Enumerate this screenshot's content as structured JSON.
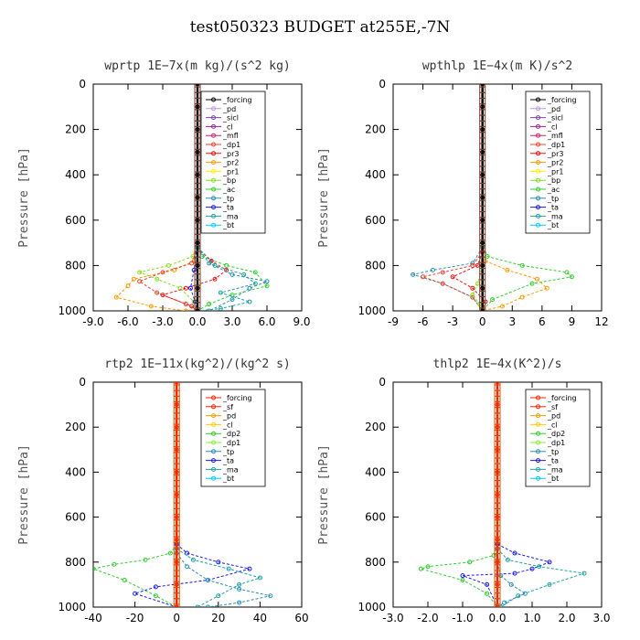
{
  "title": "test050323  BUDGET at255E,-7N",
  "colors": {
    "forcing": "#000000",
    "pd": "#bb99dd",
    "sicl": "#7a3fb8",
    "cl": "#9a2090",
    "mfl": "#cc2266",
    "dp1": "#e8432f",
    "pr3": "#ee1111",
    "pr2": "#ff9900",
    "pr1": "#ffee00",
    "bp": "#88dd22",
    "ac": "#33cc33",
    "tp": "#2a8fb5",
    "ta": "#1a1aee",
    "ma": "#20a0a0",
    "bt": "#00ccff",
    "forcing_red": "#ff2200",
    "sf": "#ff2200",
    "pd2": "#ff9900",
    "cl2": "#ffcc00",
    "dp2": "#33cc33",
    "dp1g": "#88ee33"
  },
  "chart_data": [
    {
      "type": "line",
      "title": "wprtp  1E−7x(m kg)/(s^2 kg)",
      "ylabel": "Pressure [hPa]",
      "xlim": [
        -9,
        9
      ],
      "ylim": [
        1000,
        0
      ],
      "xticks": [
        "-9.0",
        "-6.0",
        "-3.0",
        "0.0",
        "3.0",
        "6.0",
        "9.0"
      ],
      "xtick_values": [
        -9,
        -6,
        -3,
        0,
        3,
        6,
        9
      ],
      "yticks": [
        "0",
        "200",
        "400",
        "600",
        "800",
        "1000"
      ],
      "legend": [
        "_forcing",
        "_pd",
        "_sicl",
        "_cl",
        "_mfl",
        "_dp1",
        "_pr3",
        "_pr2",
        "_pr1",
        "_bp",
        "_ac",
        "_tp",
        "_ta",
        "_ma",
        "_bt"
      ],
      "legend_keys": [
        "forcing",
        "pd",
        "sicl",
        "cl",
        "mfl",
        "dp1",
        "pr3",
        "pr2",
        "pr1",
        "bp",
        "ac",
        "tp",
        "ta",
        "ma",
        "bt"
      ],
      "series": [
        {
          "key": "bp",
          "x": [
            0,
            -0.4,
            -2.5,
            -5.0,
            -3.5,
            -1.5,
            -0.3,
            0
          ],
          "y": [
            700,
            760,
            800,
            830,
            860,
            900,
            960,
            1000
          ]
        },
        {
          "key": "ac",
          "x": [
            0,
            0.4,
            2.5,
            5.0,
            6.0,
            3.0,
            1.0,
            0
          ],
          "y": [
            700,
            760,
            800,
            830,
            890,
            930,
            970,
            1000
          ]
        },
        {
          "key": "pr2",
          "x": [
            0,
            -0.3,
            -2.0,
            -5.5,
            -6.0,
            -7.0,
            -4.0,
            -1.0
          ],
          "y": [
            720,
            780,
            820,
            860,
            890,
            940,
            980,
            1000
          ]
        },
        {
          "key": "pr3",
          "x": [
            0,
            1.2,
            2.5,
            1.5,
            -1.0,
            -3.0,
            -0.5,
            0
          ],
          "y": [
            720,
            780,
            820,
            860,
            900,
            930,
            980,
            1000
          ]
        },
        {
          "key": "dp1",
          "x": [
            0,
            -0.5,
            -3.0,
            -5.0,
            -3.5,
            -1.0,
            0
          ],
          "y": [
            720,
            790,
            830,
            870,
            920,
            970,
            1000
          ]
        },
        {
          "key": "tp",
          "x": [
            0,
            1.0,
            3.0,
            6.0,
            4.5,
            3.0,
            1.0
          ],
          "y": [
            720,
            790,
            840,
            870,
            900,
            950,
            1000
          ]
        },
        {
          "key": "ma",
          "x": [
            0,
            1.5,
            4.0,
            5.0,
            2.0,
            4.5,
            2.0,
            0
          ],
          "y": [
            720,
            800,
            840,
            880,
            920,
            960,
            990,
            1000
          ]
        },
        {
          "key": "ta",
          "x": [
            0,
            -0.3,
            -0.6,
            -0.2,
            0
          ],
          "y": [
            700,
            820,
            900,
            960,
            1000
          ]
        },
        {
          "key": "forcing",
          "x": [
            0,
            0,
            0,
            0,
            0,
            0,
            0,
            0,
            0,
            0,
            0
          ],
          "y": [
            0,
            100,
            200,
            300,
            400,
            500,
            600,
            700,
            800,
            900,
            1000
          ]
        }
      ]
    },
    {
      "type": "line",
      "title": "wpthlp  1E−4x(m K)/s^2",
      "ylabel": "Pressure [hPa]",
      "xlim": [
        -9,
        12
      ],
      "ylim": [
        1000,
        0
      ],
      "xticks": [
        "-9",
        "-6",
        "-3",
        "0",
        "3",
        "6",
        "9",
        "12"
      ],
      "xtick_values": [
        -9,
        -6,
        -3,
        0,
        3,
        6,
        9,
        12
      ],
      "yticks": [
        "0",
        "200",
        "400",
        "600",
        "800",
        "1000"
      ],
      "legend": [
        "_forcing",
        "_pd",
        "_sicl",
        "_cl",
        "_mfl",
        "_dp1",
        "_pr3",
        "_pr2",
        "_pr1",
        "_bp",
        "_ac",
        "_tp",
        "_ta",
        "_ma",
        "_bt"
      ],
      "legend_keys": [
        "forcing",
        "pd",
        "sicl",
        "cl",
        "mfl",
        "dp1",
        "pr3",
        "pr2",
        "pr1",
        "bp",
        "ac",
        "tp",
        "ta",
        "ma",
        "bt"
      ],
      "series": [
        {
          "key": "ac",
          "x": [
            0,
            0.5,
            4.0,
            8.5,
            9.0,
            5.0,
            1.0,
            0
          ],
          "y": [
            700,
            760,
            800,
            830,
            850,
            880,
            950,
            1000
          ]
        },
        {
          "key": "pr2",
          "x": [
            0,
            0.3,
            2.5,
            5.5,
            6.5,
            4.0,
            2.0,
            0
          ],
          "y": [
            720,
            780,
            820,
            860,
            900,
            940,
            980,
            1000
          ]
        },
        {
          "key": "tp",
          "x": [
            0,
            -1.0,
            -5.0,
            -7.0,
            -4.0,
            -1.0,
            0
          ],
          "y": [
            720,
            790,
            820,
            840,
            880,
            940,
            1000
          ]
        },
        {
          "key": "dp1",
          "x": [
            0,
            -1.0,
            -4.0,
            -6.0,
            -4.0,
            -1.0,
            0
          ],
          "y": [
            740,
            800,
            830,
            850,
            880,
            940,
            1000
          ]
        },
        {
          "key": "pr3",
          "x": [
            0,
            -0.5,
            -3.0,
            -1.0,
            0.3,
            0
          ],
          "y": [
            740,
            800,
            850,
            900,
            960,
            1000
          ]
        },
        {
          "key": "bp",
          "x": [
            0,
            -0.5,
            -1.0,
            -0.3,
            0
          ],
          "y": [
            800,
            880,
            930,
            970,
            1000
          ]
        },
        {
          "key": "forcing",
          "x": [
            0,
            0,
            0,
            0,
            0,
            0,
            0,
            0,
            0,
            0,
            0
          ],
          "y": [
            0,
            100,
            200,
            300,
            400,
            500,
            600,
            700,
            800,
            900,
            1000
          ]
        }
      ]
    },
    {
      "type": "line",
      "title": "rtp2  1E−11x(kg^2)/(kg^2 s)",
      "ylabel": "Pressure [hPa]",
      "xlim": [
        -40,
        60
      ],
      "ylim": [
        1000,
        0
      ],
      "xticks": [
        "-40",
        "-20",
        "0",
        "20",
        "40",
        "60"
      ],
      "xtick_values": [
        -40,
        -20,
        0,
        20,
        40,
        60
      ],
      "yticks": [
        "0",
        "200",
        "400",
        "600",
        "800",
        "1000"
      ],
      "legend": [
        "_forcing",
        "_sf",
        "_pd",
        "_cl",
        "_dp2",
        "_dp1",
        "_tp",
        "_ta",
        "_ma",
        "_bt"
      ],
      "legend_keys": [
        "forcing_red",
        "sf",
        "pd2",
        "cl2",
        "dp2",
        "dp1g",
        "tp",
        "ta",
        "ma",
        "bt"
      ],
      "series": [
        {
          "key": "dp2",
          "x": [
            0,
            -3,
            -15,
            -30,
            -40,
            -25,
            -10,
            0
          ],
          "y": [
            720,
            760,
            790,
            810,
            830,
            880,
            950,
            1000
          ]
        },
        {
          "key": "ta",
          "x": [
            0,
            5,
            20,
            35,
            15,
            -10,
            -20,
            0
          ],
          "y": [
            720,
            760,
            800,
            830,
            880,
            910,
            940,
            1000
          ]
        },
        {
          "key": "ma",
          "x": [
            0,
            8,
            25,
            40,
            30,
            20,
            10
          ],
          "y": [
            740,
            790,
            830,
            870,
            900,
            950,
            1000
          ]
        },
        {
          "key": "tp",
          "x": [
            0,
            5,
            15,
            30,
            45,
            30,
            15
          ],
          "y": [
            760,
            820,
            880,
            920,
            950,
            980,
            1000
          ]
        },
        {
          "key": "forcing_red",
          "x": [
            0,
            0,
            0,
            0,
            0,
            0,
            0,
            0,
            0,
            0,
            0
          ],
          "y": [
            0,
            100,
            200,
            300,
            400,
            500,
            600,
            700,
            800,
            900,
            1000
          ]
        }
      ]
    },
    {
      "type": "line",
      "title": "thlp2  1E−4x(K^2)/s",
      "ylabel": "Pressure [hPa]",
      "xlim": [
        -3,
        3
      ],
      "ylim": [
        1000,
        0
      ],
      "xticks": [
        "-3.0",
        "-2.0",
        "-1.0",
        "0.0",
        "1.0",
        "2.0",
        "3.0"
      ],
      "xtick_values": [
        -3,
        -2,
        -1,
        0,
        1,
        2,
        3
      ],
      "yticks": [
        "0",
        "200",
        "400",
        "600",
        "800",
        "1000"
      ],
      "legend": [
        "_forcing",
        "_sf",
        "_pd",
        "_cl",
        "_dp2",
        "_dp1",
        "_tp",
        "_ta",
        "_ma",
        "_bt"
      ],
      "legend_keys": [
        "forcing_red",
        "sf",
        "pd2",
        "cl2",
        "dp2",
        "dp1g",
        "tp",
        "ta",
        "ma",
        "bt"
      ],
      "series": [
        {
          "key": "dp2",
          "x": [
            0,
            -0.1,
            -0.8,
            -2.0,
            -2.2,
            -1.0,
            -0.3,
            0
          ],
          "y": [
            720,
            770,
            800,
            820,
            830,
            880,
            940,
            1000
          ]
        },
        {
          "key": "ta",
          "x": [
            0,
            0.5,
            1.5,
            1.0,
            0.5,
            -1.0,
            -0.3,
            0
          ],
          "y": [
            720,
            760,
            800,
            830,
            850,
            860,
            900,
            1000
          ]
        },
        {
          "key": "ma",
          "x": [
            0,
            0.3,
            1.2,
            2.5,
            1.5,
            0.6,
            0.1
          ],
          "y": [
            740,
            790,
            820,
            850,
            900,
            950,
            1000
          ]
        },
        {
          "key": "tp",
          "x": [
            0,
            0.1,
            0.4,
            0.8,
            0.2,
            0
          ],
          "y": [
            800,
            860,
            900,
            940,
            980,
            1000
          ]
        },
        {
          "key": "forcing_red",
          "x": [
            0,
            0,
            0,
            0,
            0,
            0,
            0,
            0,
            0,
            0,
            0
          ],
          "y": [
            0,
            100,
            200,
            300,
            400,
            500,
            600,
            700,
            800,
            900,
            1000
          ]
        }
      ]
    }
  ]
}
